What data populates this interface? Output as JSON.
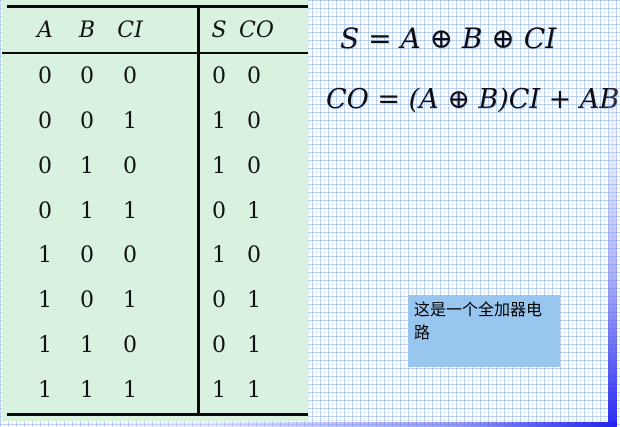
{
  "table": {
    "headers": {
      "inputs": [
        "A",
        "B",
        "CI"
      ],
      "outputs": [
        "S",
        "CO"
      ]
    },
    "rows": [
      {
        "inputs": [
          "0",
          "0",
          "0"
        ],
        "outputs": [
          "0",
          "0"
        ]
      },
      {
        "inputs": [
          "0",
          "0",
          "1"
        ],
        "outputs": [
          "1",
          "0"
        ]
      },
      {
        "inputs": [
          "0",
          "1",
          "0"
        ],
        "outputs": [
          "1",
          "0"
        ]
      },
      {
        "inputs": [
          "0",
          "1",
          "1"
        ],
        "outputs": [
          "0",
          "1"
        ]
      },
      {
        "inputs": [
          "1",
          "0",
          "0"
        ],
        "outputs": [
          "1",
          "0"
        ]
      },
      {
        "inputs": [
          "1",
          "0",
          "1"
        ],
        "outputs": [
          "0",
          "1"
        ]
      },
      {
        "inputs": [
          "1",
          "1",
          "0"
        ],
        "outputs": [
          "0",
          "1"
        ]
      },
      {
        "inputs": [
          "1",
          "1",
          "1"
        ],
        "outputs": [
          "1",
          "1"
        ]
      }
    ]
  },
  "equations": {
    "sum": "S = A ⊕ B ⊕ CI",
    "carry": "CO = (A ⊕ B)CI + AB"
  },
  "note": {
    "lines": [
      "这是一个全加器电",
      "路"
    ]
  },
  "colors": {
    "table_background": "#d9f1df",
    "note_background": "#99c6ef",
    "edge_gradient_blue": "#2a2af0",
    "grid_line": "#c9dcf4",
    "text": "#0d0d12"
  }
}
